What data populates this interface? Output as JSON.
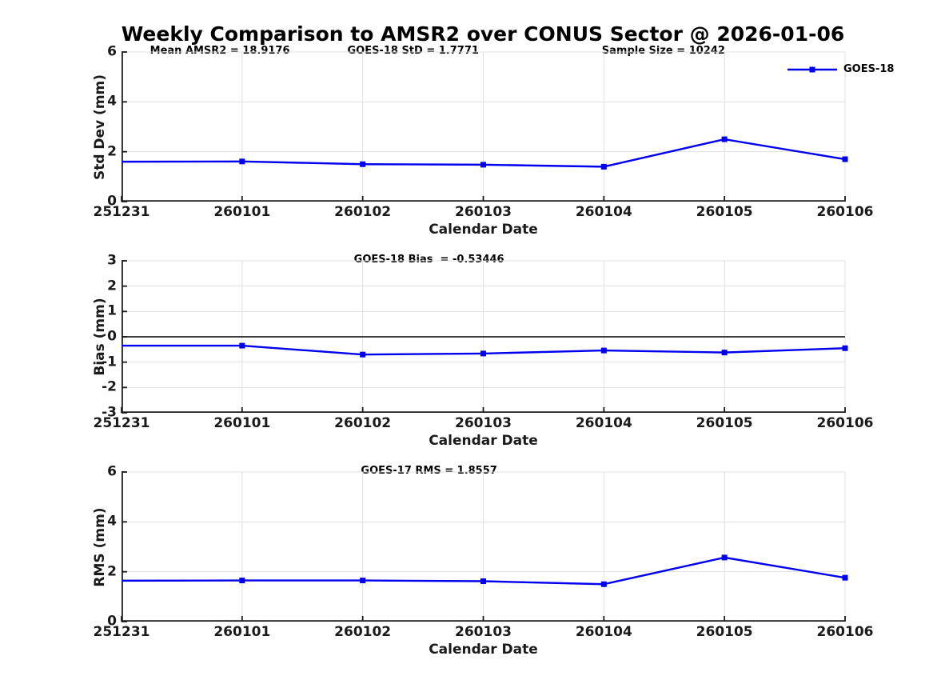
{
  "figure": {
    "title": "Weekly Comparison to AMSR2 over CONUS Sector @ 2026-01-06"
  },
  "legend": {
    "series_label": "GOES-18"
  },
  "colors": {
    "line": "#0000EE",
    "marker": "#0000EE",
    "grid": "#E0E0E0",
    "axis": "#1A1A1A",
    "zero_line": "#404040",
    "text": "#000000"
  },
  "chart_data": [
    {
      "type": "line",
      "ylabel": "Std Dev (mm)",
      "xlabel": "Calendar Date",
      "ylim": [
        0,
        6
      ],
      "yticks": [
        0,
        2,
        4,
        6
      ],
      "grid": true,
      "legend_position": "top-right",
      "categories": [
        "251231",
        "260101",
        "260102",
        "260103",
        "260104",
        "260105",
        "260106"
      ],
      "series": [
        {
          "name": "GOES-18",
          "values": [
            1.6,
            1.61,
            1.5,
            1.48,
            1.4,
            2.5,
            1.7
          ]
        }
      ],
      "annotations": [
        "Mean AMSR2 = 18.9176",
        "GOES-18 StD = 1.7771",
        "Sample Size = 10242"
      ]
    },
    {
      "type": "line",
      "ylabel": "Bias (mm)",
      "xlabel": "Calendar Date",
      "ylim": [
        -3,
        3
      ],
      "yticks": [
        -3,
        -2,
        -1,
        0,
        1,
        2,
        3
      ],
      "grid": true,
      "zero_line": true,
      "categories": [
        "251231",
        "260101",
        "260102",
        "260103",
        "260104",
        "260105",
        "260106"
      ],
      "series": [
        {
          "name": "GOES-18",
          "values": [
            -0.35,
            -0.35,
            -0.7,
            -0.66,
            -0.54,
            -0.62,
            -0.45
          ]
        }
      ],
      "annotations": [
        "GOES-18 Bias  = -0.53446"
      ]
    },
    {
      "type": "line",
      "ylabel": "RMS (mm)",
      "xlabel": "Calendar Date",
      "ylim": [
        0,
        6
      ],
      "yticks": [
        0,
        2,
        4,
        6
      ],
      "grid": true,
      "categories": [
        "251231",
        "260101",
        "260102",
        "260103",
        "260104",
        "260105",
        "260106"
      ],
      "series": [
        {
          "name": "GOES-18",
          "values": [
            1.64,
            1.65,
            1.65,
            1.62,
            1.5,
            2.57,
            1.76
          ]
        }
      ],
      "annotations": [
        "GOES-17 RMS = 1.8557"
      ]
    }
  ]
}
